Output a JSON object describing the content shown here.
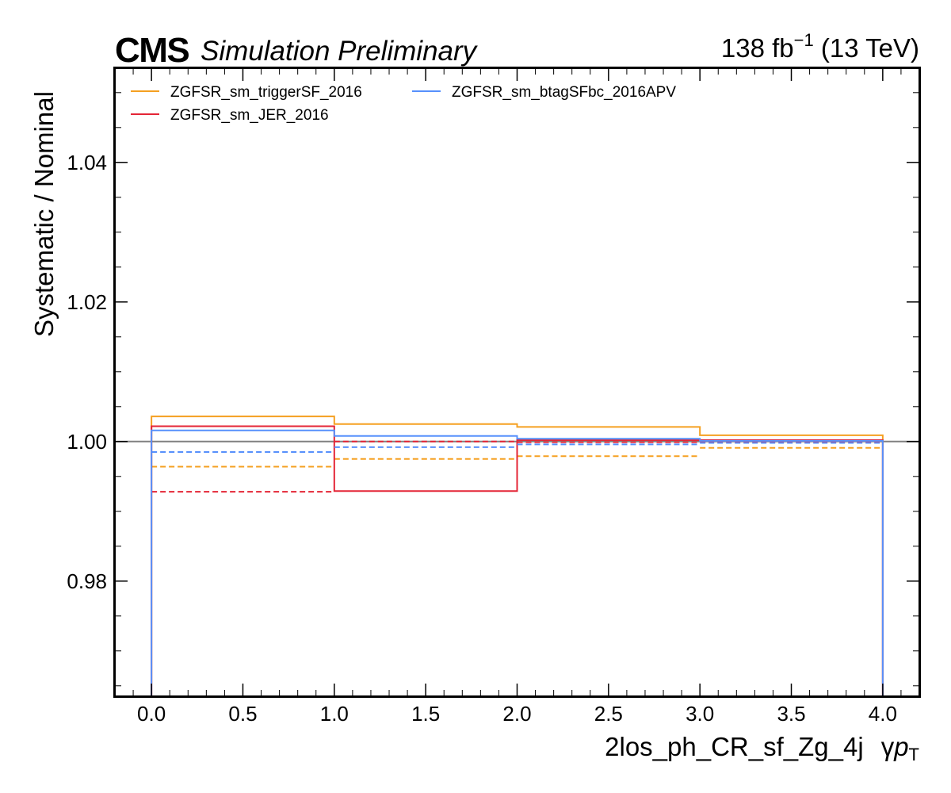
{
  "header": {
    "experiment": "CMS",
    "status": "Simulation Preliminary",
    "lumi_value": "138 fb",
    "lumi_exp": "−1",
    "energy": " (13 TeV)"
  },
  "chart_data": {
    "type": "line",
    "step": true,
    "ylabel": "Systematic / Nominal",
    "xlabel_region": "2los_ph_CR_sf_Zg_4j",
    "xlabel_var": "γ",
    "xlabel_var_italic": "p",
    "xlabel_var_sub": "T",
    "xlim": [
      -0.2,
      4.2
    ],
    "ylim": [
      0.9635,
      1.0535
    ],
    "bin_edges": [
      0,
      1,
      2,
      3,
      4
    ],
    "x_ticks": [
      0.0,
      0.5,
      1.0,
      1.5,
      2.0,
      2.5,
      3.0,
      3.5,
      4.0
    ],
    "x_tick_labels": [
      "0.0",
      "0.5",
      "1.0",
      "1.5",
      "2.0",
      "2.5",
      "3.0",
      "3.5",
      "4.0"
    ],
    "y_ticks": [
      0.98,
      1.0,
      1.02,
      1.04
    ],
    "y_tick_labels": [
      "0.98",
      "1.00",
      "1.02",
      "1.04"
    ],
    "reference_line": 1.0,
    "grid": false,
    "legend_position": "top-left",
    "legend_columns": 2,
    "series": [
      {
        "name": "ZGFSR_sm_triggerSF_2016",
        "color": "#f5a021",
        "up": [
          1.0036,
          1.0025,
          1.0021,
          1.0009
        ],
        "down": [
          0.9964,
          0.9975,
          0.9979,
          0.9991
        ]
      },
      {
        "name": "ZGFSR_sm_JER_2016",
        "color": "#e42536",
        "up": [
          1.0022,
          0.9929,
          1.0002,
          1.0002
        ],
        "down": [
          0.9928,
          1.0,
          0.9999,
          1.0
        ]
      },
      {
        "name": "ZGFSR_sm_btagSFbc_2016APV",
        "color": "#5790fc",
        "up": [
          1.0016,
          1.0008,
          1.0004,
          1.0001
        ],
        "down": [
          0.9985,
          0.9992,
          0.9996,
          0.9998
        ]
      }
    ]
  }
}
